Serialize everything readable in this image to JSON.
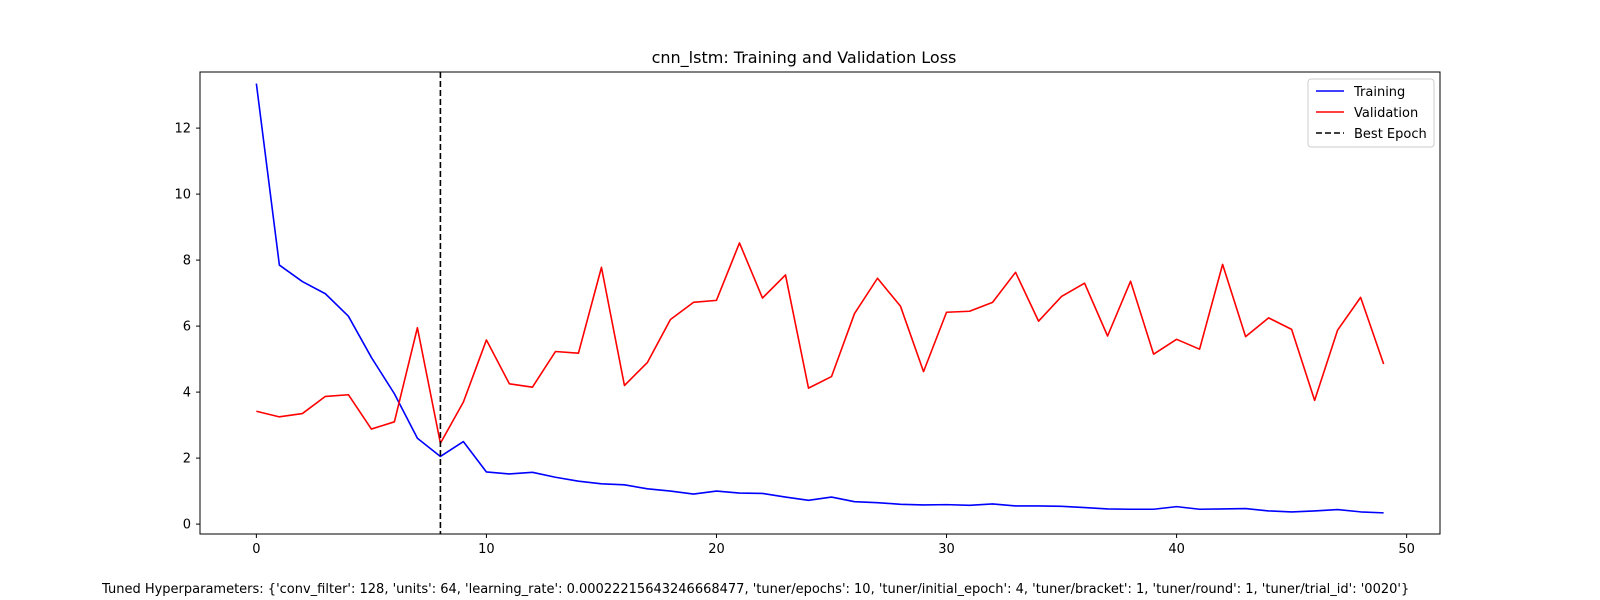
{
  "chart_data": {
    "type": "line",
    "title": "cnn_lstm: Training and Validation Loss",
    "xlabel": "",
    "ylabel": "",
    "xlim": [
      -2.45,
      51.45
    ],
    "ylim": [
      -0.3,
      13.7
    ],
    "xticks": [
      0,
      10,
      20,
      30,
      40,
      50
    ],
    "yticks": [
      0,
      2,
      4,
      6,
      8,
      10,
      12
    ],
    "grid": false,
    "legend_position": "top-right",
    "x": [
      0,
      1,
      2,
      3,
      4,
      5,
      6,
      7,
      8,
      9,
      10,
      11,
      12,
      13,
      14,
      15,
      16,
      17,
      18,
      19,
      20,
      21,
      22,
      23,
      24,
      25,
      26,
      27,
      28,
      29,
      30,
      31,
      32,
      33,
      34,
      35,
      36,
      37,
      38,
      39,
      40,
      41,
      42,
      43,
      44,
      45,
      46,
      47,
      48,
      49
    ],
    "series": [
      {
        "name": "Training",
        "color": "#0000ff",
        "values": [
          13.35,
          7.85,
          7.35,
          6.98,
          6.3,
          5.05,
          3.95,
          2.6,
          2.05,
          2.5,
          1.58,
          1.52,
          1.57,
          1.42,
          1.3,
          1.22,
          1.19,
          1.07,
          1.0,
          0.91,
          1.0,
          0.94,
          0.93,
          0.82,
          0.72,
          0.82,
          0.68,
          0.65,
          0.6,
          0.58,
          0.59,
          0.57,
          0.61,
          0.55,
          0.55,
          0.54,
          0.5,
          0.46,
          0.45,
          0.45,
          0.53,
          0.45,
          0.46,
          0.47,
          0.4,
          0.37,
          0.4,
          0.44,
          0.37,
          0.34
        ]
      },
      {
        "name": "Validation",
        "color": "#ff0000",
        "values": [
          3.42,
          3.25,
          3.35,
          3.87,
          3.92,
          2.88,
          3.1,
          5.95,
          2.45,
          3.7,
          5.58,
          4.25,
          4.15,
          5.23,
          5.18,
          7.78,
          4.2,
          4.9,
          6.2,
          6.72,
          6.78,
          8.52,
          6.85,
          7.55,
          4.12,
          4.47,
          6.38,
          7.45,
          6.6,
          4.62,
          6.42,
          6.45,
          6.72,
          7.63,
          6.15,
          6.9,
          7.3,
          5.7,
          7.36,
          5.15,
          5.6,
          5.3,
          7.87,
          5.68,
          6.25,
          5.9,
          3.75,
          5.88,
          6.87,
          4.85
        ]
      }
    ],
    "best_epoch": {
      "name": "Best Epoch",
      "x": 8,
      "color": "#000000"
    },
    "footer": "Tuned Hyperparameters: {'conv_filter': 128, 'units': 64, 'learning_rate': 0.00022215643246668477, 'tuner/epochs': 10, 'tuner/initial_epoch': 4, 'tuner/bracket': 1, 'tuner/round': 1, 'tuner/trial_id': '0020'}"
  }
}
